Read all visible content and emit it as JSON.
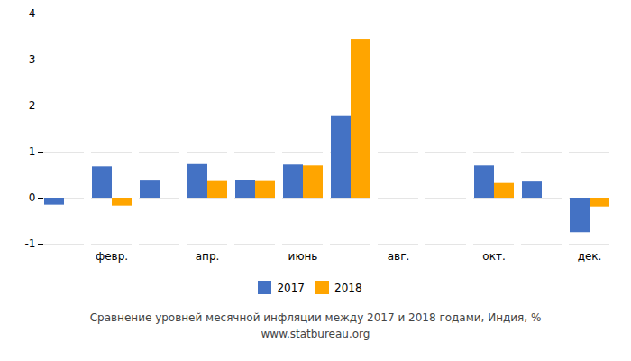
{
  "chart_data": {
    "type": "bar",
    "title": "Сравнение уровней месячной инфляции между 2017 и 2018 годами, Индия, %",
    "subtitle": "www.statbureau.org",
    "categories": [
      null,
      "февр.",
      null,
      "апр.",
      null,
      "июнь",
      null,
      "авг.",
      null,
      "окт.",
      null,
      "дек."
    ],
    "series": [
      {
        "name": "2017",
        "color": "#4472c4",
        "values": [
          -0.15,
          0.68,
          0.37,
          0.73,
          0.38,
          0.72,
          1.79,
          0.0,
          0.0,
          0.7,
          0.35,
          -0.75
        ]
      },
      {
        "name": "2018",
        "color": "#ffa500",
        "values": [
          0.0,
          -0.17,
          0.0,
          0.36,
          0.36,
          0.7,
          3.45,
          0.0,
          0.0,
          0.32,
          0.0,
          -0.19
        ]
      }
    ],
    "ylim": [
      -1.0,
      4.0
    ],
    "yticks": [
      -1,
      0,
      1,
      2,
      3,
      4
    ],
    "grid": true,
    "legend": "bottom"
  }
}
